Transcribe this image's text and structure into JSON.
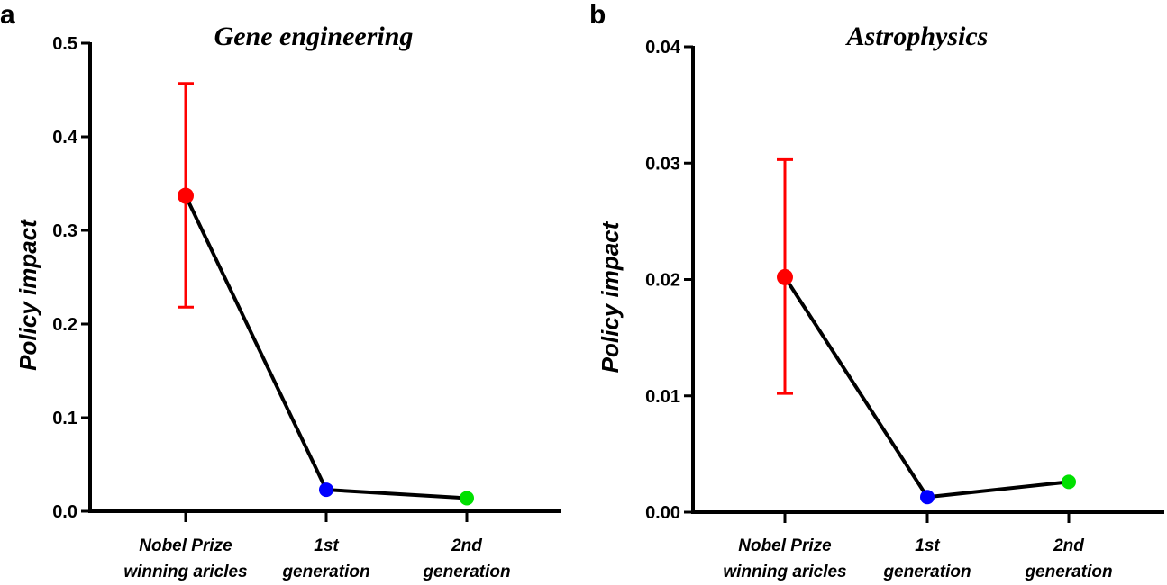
{
  "chart_data": [
    {
      "panel_label": "a",
      "type": "line",
      "title": "Gene engineering",
      "xlabel": "",
      "ylabel": "Policy impact",
      "ylim": [
        0,
        0.5
      ],
      "yticks": [
        "0.0",
        "0.1",
        "0.2",
        "0.3",
        "0.4",
        "0.5"
      ],
      "categories": [
        [
          "Nobel Prize",
          "winning aricles"
        ],
        [
          "1st",
          "generation"
        ],
        [
          "2nd",
          "generation"
        ]
      ],
      "values": [
        0.337,
        0.023,
        0.014
      ],
      "error_bars": [
        [
          0.218,
          0.457
        ],
        null,
        null
      ],
      "point_colors": [
        "#ff0000",
        "#0000ff",
        "#00e000"
      ],
      "line_color": "#000000",
      "grid": false
    },
    {
      "panel_label": "b",
      "type": "line",
      "title": "Astrophysics",
      "xlabel": "",
      "ylabel": "Policy impact",
      "ylim": [
        0,
        0.04
      ],
      "yticks": [
        "0.00",
        "0.01",
        "0.02",
        "0.03",
        "0.04"
      ],
      "categories": [
        [
          "Nobel Prize",
          "winning aricles"
        ],
        [
          "1st",
          "generation"
        ],
        [
          "2nd",
          "generation"
        ]
      ],
      "values": [
        0.0202,
        0.0013,
        0.0026
      ],
      "error_bars": [
        [
          0.0102,
          0.0303
        ],
        null,
        null
      ],
      "point_colors": [
        "#ff0000",
        "#0000ff",
        "#00e000"
      ],
      "line_color": "#000000",
      "grid": false
    }
  ]
}
